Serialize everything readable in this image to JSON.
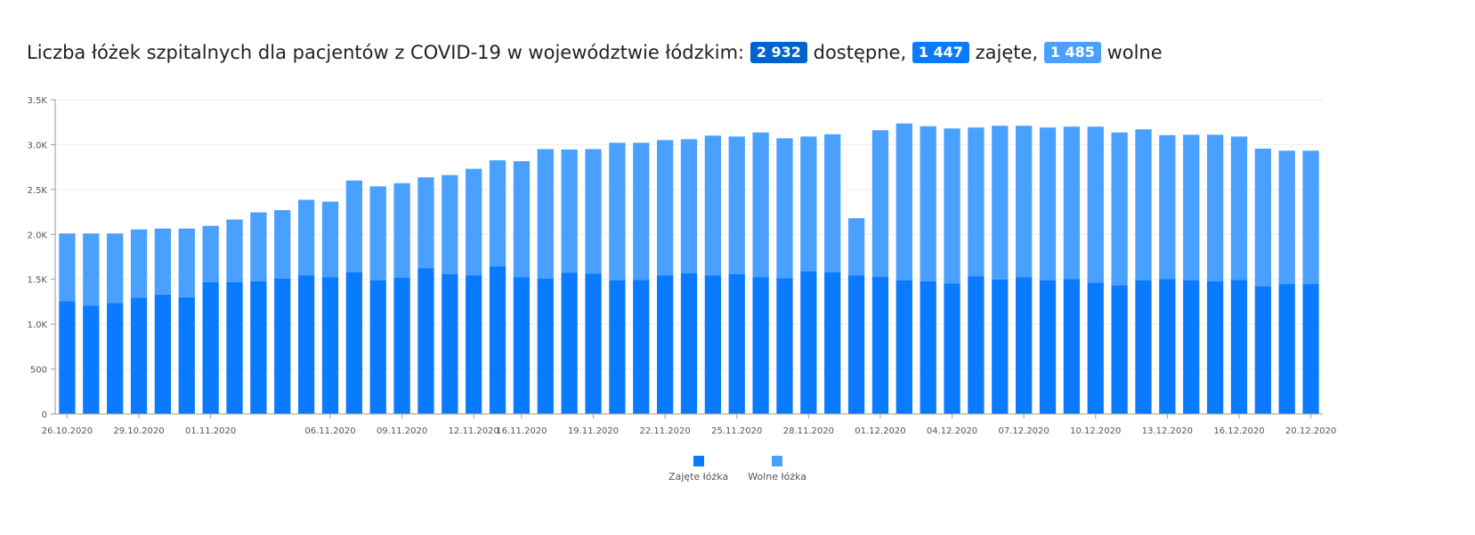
{
  "title": {
    "prefix": "Liczba łóżek szpitalnych dla pacjentów z COVID-19 w województwie łódzkim:",
    "total": "2 932",
    "total_suffix": "dostępne,",
    "occupied": "1 447",
    "occupied_suffix": "zajęte,",
    "free": "1 485",
    "free_suffix": "wolne"
  },
  "colors": {
    "occupied": "#0a7bff",
    "free": "#4aa0ff",
    "axis": "#9a9a9a",
    "grid": "#eeeeee",
    "text": "#555555"
  },
  "chart_data": {
    "type": "bar",
    "stacked": true,
    "ylim": [
      0,
      3500
    ],
    "yticks": [
      {
        "value": 0,
        "label": "0"
      },
      {
        "value": 500,
        "label": "500"
      },
      {
        "value": 1000,
        "label": "1.0K"
      },
      {
        "value": 1500,
        "label": "1.5K"
      },
      {
        "value": 2000,
        "label": "2.0K"
      },
      {
        "value": 2500,
        "label": "2.5K"
      },
      {
        "value": 3000,
        "label": "3.0K"
      },
      {
        "value": 3500,
        "label": "3.5K"
      }
    ],
    "categories": [
      "26.10.2020",
      "27.10.2020",
      "28.10.2020",
      "29.10.2020",
      "30.10.2020",
      "31.10.2020",
      "01.11.2020",
      "02.11.2020",
      "03.11.2020",
      "04.11.2020",
      "05.11.2020",
      "06.11.2020",
      "07.11.2020",
      "08.11.2020",
      "09.11.2020",
      "10.11.2020",
      "11.11.2020",
      "12.11.2020",
      "13.11.2020",
      "16.11.2020",
      "17.11.2020",
      "18.11.2020",
      "19.11.2020",
      "20.11.2020",
      "21.11.2020",
      "22.11.2020",
      "23.11.2020",
      "24.11.2020",
      "25.11.2020",
      "26.11.2020",
      "27.11.2020",
      "28.11.2020",
      "29.11.2020",
      "30.11.2020",
      "01.12.2020",
      "02.12.2020",
      "03.12.2020",
      "04.12.2020",
      "05.12.2020",
      "06.12.2020",
      "07.12.2020",
      "08.12.2020",
      "09.12.2020",
      "10.12.2020",
      "11.12.2020",
      "12.12.2020",
      "13.12.2020",
      "14.12.2020",
      "15.12.2020",
      "16.12.2020",
      "17.12.2020",
      "18.12.2020",
      "20.12.2020"
    ],
    "visible_tick_labels": [
      "26.10.2020",
      "29.10.2020",
      "01.11.2020",
      "06.11.2020",
      "09.11.2020",
      "12.11.2020",
      "16.11.2020",
      "19.11.2020",
      "22.11.2020",
      "25.11.2020",
      "28.11.2020",
      "01.12.2020",
      "04.12.2020",
      "07.12.2020",
      "10.12.2020",
      "13.12.2020",
      "16.12.2020",
      "20.12.2020"
    ],
    "series": [
      {
        "name": "Zajęte łóżka",
        "color": "#0a7bff",
        "values": [
          1255,
          1205,
          1235,
          1295,
          1330,
          1300,
          1470,
          1470,
          1480,
          1510,
          1545,
          1525,
          1580,
          1490,
          1520,
          1625,
          1560,
          1545,
          1645,
          1525,
          1510,
          1575,
          1565,
          1490,
          1495,
          1545,
          1570,
          1545,
          1560,
          1525,
          1515,
          1590,
          1580,
          1545,
          1530,
          1490,
          1480,
          1455,
          1535,
          1500,
          1525,
          1490,
          1505,
          1465,
          1435,
          1490,
          1505,
          1490,
          1480,
          1495,
          1425,
          1447,
          1447
        ]
      },
      {
        "name": "Wolne łóżka",
        "color": "#4aa0ff",
        "values": [
          755,
          805,
          775,
          760,
          735,
          765,
          625,
          695,
          765,
          760,
          840,
          840,
          1020,
          1045,
          1050,
          1010,
          1100,
          1185,
          1180,
          1290,
          1440,
          1370,
          1385,
          1530,
          1525,
          1505,
          1490,
          1555,
          1530,
          1610,
          1555,
          1500,
          1535,
          635,
          1630,
          1745,
          1725,
          1725,
          1655,
          1710,
          1685,
          1700,
          1695,
          1735,
          1700,
          1680,
          1600,
          1620,
          1630,
          1595,
          1530,
          1485,
          1485
        ]
      }
    ],
    "legend_position": "bottom-center"
  }
}
